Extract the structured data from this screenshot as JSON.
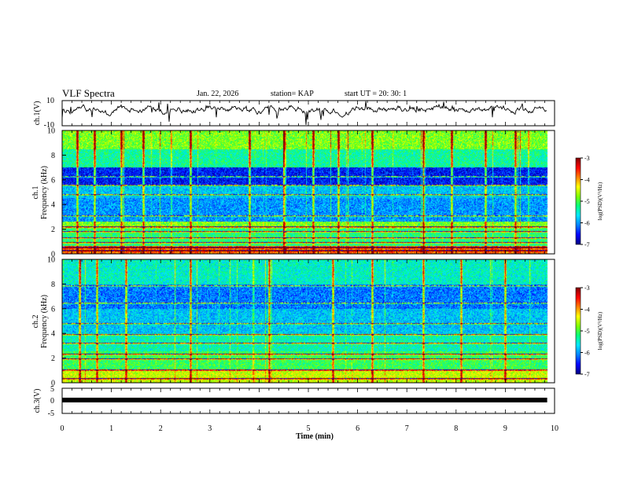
{
  "header": {
    "title": "VLF Spectra",
    "date": "Jan. 22, 2026",
    "station": "station= KAP",
    "start": "start  UT =   20: 30: 1"
  },
  "colors": {
    "colormap": [
      "#000080",
      "#0000ff",
      "#0080ff",
      "#00e5ff",
      "#00ff80",
      "#80ff00",
      "#ffff00",
      "#ff8000",
      "#ff0000",
      "#800000"
    ],
    "trace": "#000000",
    "axes": "#000000"
  },
  "chart_data": [
    {
      "type": "line",
      "name": "ch1-waveform",
      "ylabel": "ch.1(V)",
      "ylim": [
        -10,
        10
      ],
      "yticks": [
        10,
        -10
      ],
      "xlim": [
        0,
        10
      ],
      "x_extent": [
        0,
        9.85
      ],
      "baseline": 3,
      "amplitude": 4
    },
    {
      "type": "heatmap",
      "name": "ch1-spectrogram",
      "ylabel": "ch.1\nFrequency  (kHz)",
      "ylim": [
        0,
        10
      ],
      "yticks": [
        0,
        2,
        4,
        6,
        8,
        10
      ],
      "xlim": [
        0,
        10
      ],
      "x_extent": [
        0,
        9.85
      ],
      "colorbar": {
        "label": "log(PSD)(V²/Hz)",
        "range": [
          -7,
          -3
        ],
        "ticks": [
          -3,
          -4,
          -5,
          -6,
          -7
        ]
      },
      "bands": [
        {
          "f": [
            8.5,
            10
          ],
          "level": 0.55
        },
        {
          "f": [
            7.0,
            8.5
          ],
          "level": 0.42
        },
        {
          "f": [
            5.6,
            7.0
          ],
          "level": 0.12
        },
        {
          "f": [
            4.5,
            5.6
          ],
          "level": 0.3
        },
        {
          "f": [
            2.6,
            4.5
          ],
          "level": 0.25
        },
        {
          "f": [
            2.0,
            2.6
          ],
          "level": 0.55
        },
        {
          "f": [
            0.6,
            2.0
          ],
          "level": 0.45
        },
        {
          "f": [
            0.0,
            0.6
          ],
          "level": 0.8
        }
      ],
      "lines_kHz": [
        0.25,
        0.5,
        0.9,
        1.3,
        1.8,
        2.2,
        3.1,
        4.8,
        5.6,
        6.3
      ],
      "spikes_min": [
        0.3,
        0.65,
        1.2,
        1.65,
        2.6,
        3.8,
        4.5,
        5.1,
        5.6,
        6.3,
        7.33,
        7.9,
        8.6,
        9.2
      ]
    },
    {
      "type": "heatmap",
      "name": "ch2-spectrogram",
      "ylabel": "ch.2\nFrequency  (kHz)",
      "ylim": [
        0,
        10
      ],
      "yticks": [
        0,
        2,
        4,
        6,
        8,
        10
      ],
      "xlim": [
        0,
        10
      ],
      "x_extent": [
        0,
        9.85
      ],
      "colorbar": {
        "label": "log(PSD)(V²/Hz)",
        "range": [
          -7,
          -3
        ],
        "ticks": [
          -3,
          -4,
          -5,
          -6,
          -7
        ]
      },
      "bands": [
        {
          "f": [
            8.0,
            10
          ],
          "level": 0.38
        },
        {
          "f": [
            6.0,
            8.0
          ],
          "level": 0.22
        },
        {
          "f": [
            4.0,
            6.0
          ],
          "level": 0.3
        },
        {
          "f": [
            2.5,
            4.0
          ],
          "level": 0.4
        },
        {
          "f": [
            1.0,
            2.5
          ],
          "level": 0.48
        },
        {
          "f": [
            0.0,
            1.0
          ],
          "level": 0.62
        }
      ],
      "lines_kHz": [
        0.3,
        1.0,
        1.9,
        2.3,
        3.2,
        3.9,
        4.8,
        6.5,
        7.9
      ],
      "spikes_min": [
        0.35,
        0.7,
        1.3,
        2.6,
        4.2,
        5.5,
        6.3,
        7.33,
        8.1,
        9.0
      ]
    },
    {
      "type": "line",
      "name": "ch3-waveform",
      "ylabel": "ch.3(V)",
      "ylim": [
        -5,
        5
      ],
      "yticks": [
        5,
        0,
        -5
      ],
      "xlim": [
        0,
        10
      ],
      "x_extent": [
        0,
        9.85
      ],
      "level": 0.3
    }
  ],
  "x_axis": {
    "label": "Time  (min)",
    "ticks": [
      "0",
      "1",
      "2",
      "3",
      "4",
      "5",
      "6",
      "7",
      "8",
      "9",
      "10"
    ]
  }
}
